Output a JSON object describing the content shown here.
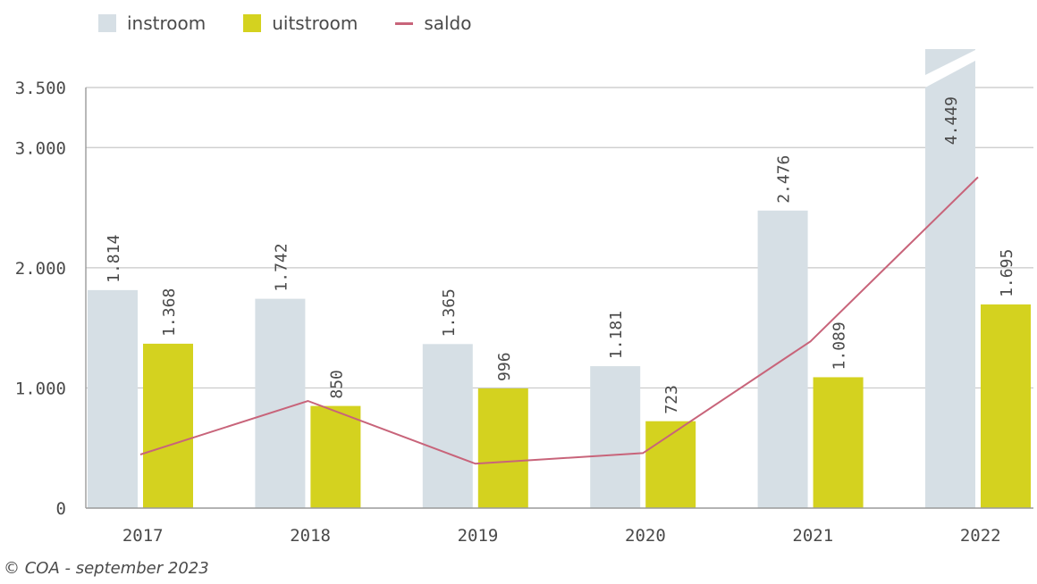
{
  "legend": {
    "instroom": "instroom",
    "uitstroom": "uitstroom",
    "saldo": "saldo"
  },
  "footer": "© COA - september 2023",
  "colors": {
    "instroom": "#d6dfe5",
    "uitstroom": "#d4d21f",
    "saldo": "#c8647a",
    "grid": "#c8c8c8",
    "axis": "#9a9a9a",
    "text": "#4a4a4a"
  },
  "chart_data": {
    "type": "bar",
    "categories": [
      "2017",
      "2018",
      "2019",
      "2020",
      "2021",
      "2022"
    ],
    "series": [
      {
        "name": "instroom",
        "values": [
          1814,
          1742,
          1365,
          1181,
          2476,
          4449
        ],
        "labels": [
          "1.814",
          "1.742",
          "1.365",
          "1.181",
          "2.476",
          "4.449"
        ]
      },
      {
        "name": "uitstroom",
        "values": [
          1368,
          850,
          996,
          723,
          1089,
          1695
        ],
        "labels": [
          "1.368",
          "850",
          "996",
          "723",
          "1.089",
          "1.695"
        ]
      }
    ],
    "line_series": {
      "name": "saldo",
      "values": [
        446,
        892,
        369,
        458,
        1387,
        2754
      ]
    },
    "yticks": [
      0,
      1000,
      2000,
      3000,
      3500
    ],
    "ytick_labels": [
      "0",
      "1.000",
      "2.000",
      "3.000",
      "3.500"
    ],
    "ylim": [
      0,
      3500
    ],
    "axis_break": "2022 instroom bar truncated at top",
    "grid": true,
    "legend_position": "top-left"
  }
}
